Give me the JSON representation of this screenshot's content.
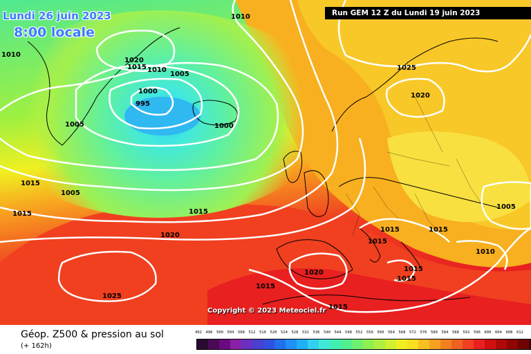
{
  "header": {
    "date": "Lundi 26 juin 2023",
    "time": "8:00 locale",
    "run": "Run GEM 12 Z du Lundi 19 juin 2023"
  },
  "copyright": "Copyright © 2023 Meteociel.fr",
  "footer": {
    "title": "Géop. Z500 & pression au sol",
    "subtitle": "(+ 162h)"
  },
  "isobar_labels": [
    "1010",
    "1010",
    "1020",
    "1015",
    "1010",
    "1005",
    "1000",
    "995",
    "1005",
    "1000",
    "1025",
    "1020",
    "1015",
    "1015",
    "1005",
    "1010",
    "1015",
    "1020",
    "1015",
    "1015",
    "1015",
    "1005",
    "1010",
    "1020",
    "1015",
    "1015",
    "1025",
    "1015"
  ],
  "legend": {
    "values": [
      "492",
      "496",
      "500",
      "504",
      "508",
      "512",
      "516",
      "520",
      "524",
      "528",
      "532",
      "536",
      "540",
      "544",
      "548",
      "552",
      "556",
      "560",
      "564",
      "568",
      "572",
      "576",
      "580",
      "584",
      "588",
      "592",
      "596",
      "600",
      "604",
      "608",
      "612"
    ],
    "colors": [
      "#2a0a30",
      "#4a0a55",
      "#6a0a80",
      "#8a20a8",
      "#6a30c0",
      "#4a40d0",
      "#3050e0",
      "#2070f0",
      "#2090f5",
      "#20b0f8",
      "#30d0f0",
      "#40e8d8",
      "#40f0b0",
      "#50f090",
      "#70f070",
      "#90f050",
      "#b0f040",
      "#d0f030",
      "#f0f020",
      "#f8e020",
      "#f8c020",
      "#f8a020",
      "#f08020",
      "#f06020",
      "#f04020",
      "#e82020",
      "#d01010",
      "#b00808",
      "#900404",
      "#700202",
      "#400000"
    ]
  }
}
